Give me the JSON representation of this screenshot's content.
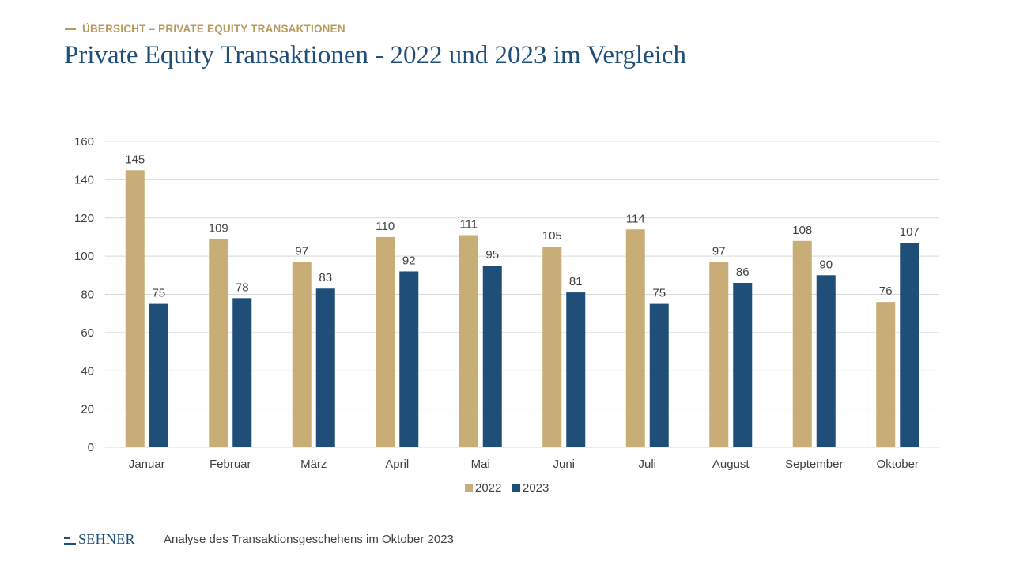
{
  "header": {
    "eyebrow": "ÜBERSICHT – PRIVATE EQUITY TRANSAKTIONEN",
    "title": "Private Equity Transaktionen - 2022 und 2023 im Vergleich"
  },
  "footer": {
    "logo_text": "SEHNER",
    "caption": "Analyse des Transaktionsgeschehens im Oktober 2023"
  },
  "colors": {
    "series_2022": "#c8ad76",
    "series_2023": "#1f4e79",
    "grid": "#d9d9d9",
    "text": "#404040"
  },
  "chart_data": {
    "type": "bar",
    "categories": [
      "Januar",
      "Februar",
      "März",
      "April",
      "Mai",
      "Juni",
      "Juli",
      "August",
      "September",
      "Oktober"
    ],
    "series": [
      {
        "name": "2022",
        "values": [
          145,
          109,
          97,
          110,
          111,
          105,
          114,
          97,
          108,
          76
        ]
      },
      {
        "name": "2023",
        "values": [
          75,
          78,
          83,
          92,
          95,
          81,
          75,
          86,
          90,
          107
        ]
      }
    ],
    "ylim": [
      0,
      160
    ],
    "yticks": [
      0,
      20,
      40,
      60,
      80,
      100,
      120,
      140,
      160
    ],
    "grid": true,
    "legend": "bottom",
    "data_labels": true
  }
}
